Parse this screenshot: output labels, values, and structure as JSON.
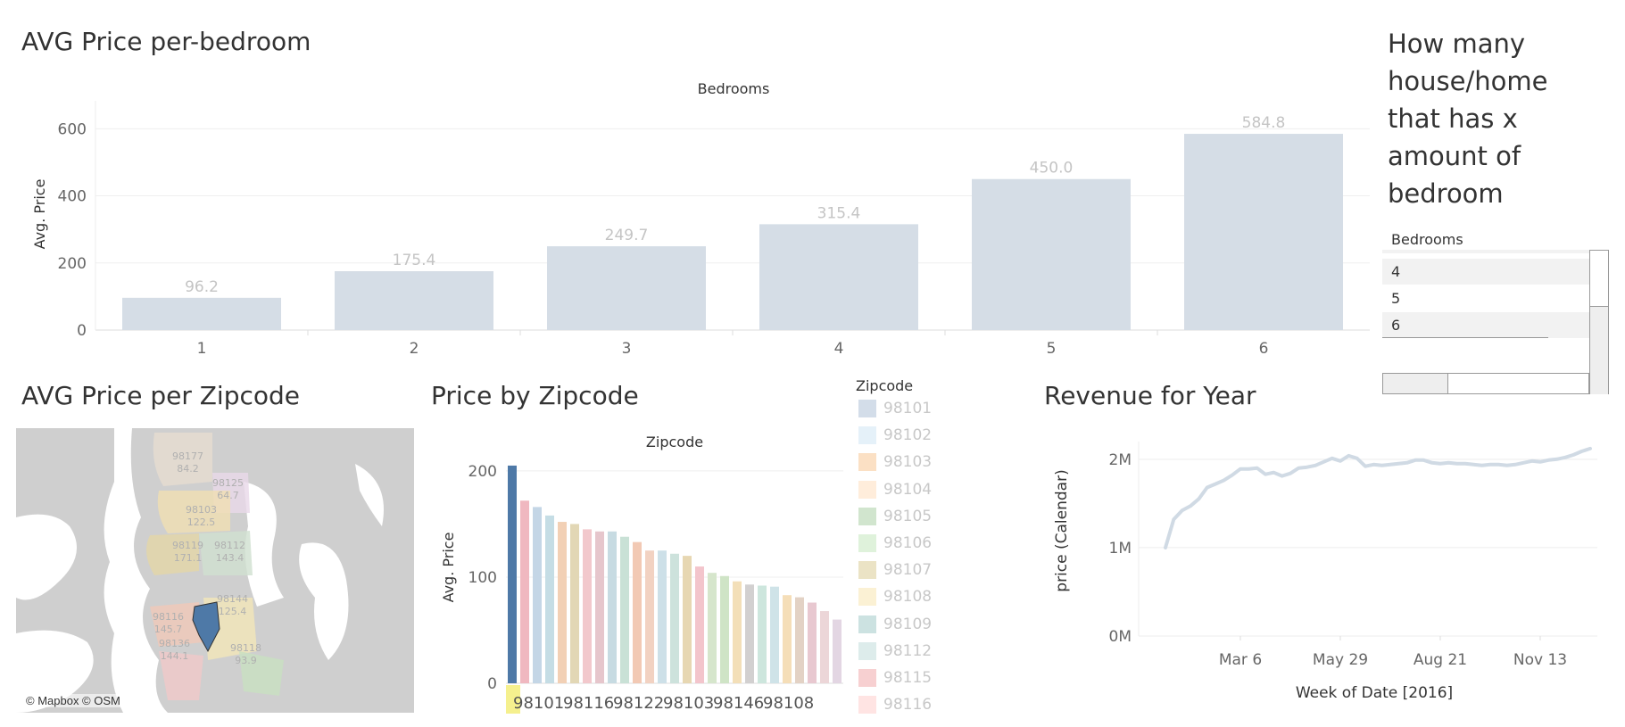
{
  "titles": {
    "bedroom_chart": "AVG Price per-bedroom",
    "count_panel": "How many house/home that has x amount of bedroom",
    "map": "AVG Price per Zipcode",
    "zipcode_chart": "Price by Zipcode",
    "revenue": "Revenue for Year"
  },
  "bedroom_list": {
    "header": "Bedrooms",
    "rows": [
      "4",
      "5",
      "6"
    ]
  },
  "zipcode_legend": {
    "title": "Zipcode",
    "items": [
      {
        "label": "98101",
        "color": "#4e79a7"
      },
      {
        "label": "98102",
        "color": "#a0cbe8"
      },
      {
        "label": "98103",
        "color": "#f28e2b"
      },
      {
        "label": "98104",
        "color": "#ffbe7d"
      },
      {
        "label": "98105",
        "color": "#59a14f"
      },
      {
        "label": "98106",
        "color": "#8cd17d"
      },
      {
        "label": "98107",
        "color": "#b6992d"
      },
      {
        "label": "98108",
        "color": "#f1ce63"
      },
      {
        "label": "98109",
        "color": "#499894"
      },
      {
        "label": "98112",
        "color": "#86bcb6"
      },
      {
        "label": "98115",
        "color": "#e15759"
      },
      {
        "label": "98116",
        "color": "#ff9d9a"
      }
    ]
  },
  "map": {
    "credit": "© Mapbox © OSM",
    "labels": [
      {
        "zip": "98177",
        "value": "84.2"
      },
      {
        "zip": "98125",
        "value": "64.7"
      },
      {
        "zip": "98103",
        "value": "122.5"
      },
      {
        "zip": "98119",
        "value": "171.1"
      },
      {
        "zip": "98112",
        "value": "143.4"
      },
      {
        "zip": "98144",
        "value": "125.4"
      },
      {
        "zip": "98116",
        "value": "145.7"
      },
      {
        "zip": "98118",
        "value": "93.9"
      },
      {
        "zip": "98136",
        "value": "144.1"
      }
    ]
  },
  "chart_data": [
    {
      "type": "bar",
      "title": "AVG Price per-bedroom",
      "xlabel": "Bedrooms",
      "ylabel": "Avg. Price",
      "categories": [
        "1",
        "2",
        "3",
        "4",
        "5",
        "6"
      ],
      "values": [
        96.2,
        175.4,
        249.7,
        315.4,
        450.0,
        584.8
      ],
      "data_labels": [
        "96.2",
        "175.4",
        "249.7",
        "315.4",
        "450.0",
        "584.8"
      ],
      "yticks": [
        0,
        200,
        400,
        600
      ],
      "ylim": [
        0,
        670
      ],
      "grid": true,
      "bar_color": "#d5dde6"
    },
    {
      "type": "bar",
      "title": "Price by Zipcode",
      "xlabel": "Zipcode",
      "ylabel": "Avg. Price",
      "xtick_labels": [
        "98101",
        "98116",
        "98122",
        "98103",
        "98146",
        "98108"
      ],
      "values": [
        205,
        172,
        166,
        158,
        152,
        150,
        145,
        143,
        143,
        138,
        133,
        125,
        125,
        122,
        120,
        110,
        104,
        101,
        96,
        93,
        92,
        91,
        83,
        81,
        76,
        68,
        60
      ],
      "yticks": [
        0,
        100,
        200
      ],
      "ylim": [
        0,
        210
      ],
      "grid": true,
      "highlight_color": "#4e79a7",
      "colors": [
        "#4e79a7",
        "#f0b8c0",
        "#c4d6e6",
        "#c5dde5",
        "#f2d0b5",
        "#e2d7b5",
        "#f2c8cc",
        "#e6c6cc",
        "#c7dbe2",
        "#c9e1d6",
        "#f2c9b4",
        "#f2d2c2",
        "#cde0e8",
        "#cde2dc",
        "#e7d7b2",
        "#f3c5cc",
        "#d6e6cc",
        "#cfe4c6",
        "#f3dfb8",
        "#d2d0d0",
        "#cde6dd",
        "#cfe3e8",
        "#f5deb8",
        "#e3d2c5",
        "#e8c8d0",
        "#ecd6d8",
        "#e3d6e3"
      ]
    },
    {
      "type": "line",
      "title": "Revenue for Year",
      "xlabel": "Week of Date [2016]",
      "ylabel": "price (Calendar)",
      "yticks": [
        "0M",
        "1M",
        "2M"
      ],
      "xticks": [
        "Mar 6",
        "May 29",
        "Aug 21",
        "Nov 13"
      ],
      "x": [
        "Jan 3",
        "Jan 10",
        "Jan 17",
        "Jan 24",
        "Jan 31",
        "Feb 7",
        "Feb 14",
        "Feb 21",
        "Feb 28",
        "Mar 6",
        "Mar 13",
        "Mar 20",
        "Mar 27",
        "Apr 3",
        "Apr 10",
        "Apr 17",
        "Apr 24",
        "May 1",
        "May 8",
        "May 15",
        "May 22",
        "May 29",
        "Jun 5",
        "Jun 12",
        "Jun 19",
        "Jun 26",
        "Jul 3",
        "Jul 10",
        "Jul 17",
        "Jul 24",
        "Jul 31",
        "Aug 7",
        "Aug 14",
        "Aug 21",
        "Aug 28",
        "Sep 4",
        "Sep 11",
        "Sep 18",
        "Sep 25",
        "Oct 2",
        "Oct 9",
        "Oct 16",
        "Oct 23",
        "Oct 30",
        "Nov 6",
        "Nov 13",
        "Nov 20",
        "Nov 27",
        "Dec 4",
        "Dec 11",
        "Dec 18",
        "Dec 25"
      ],
      "values": [
        1.0,
        1.32,
        1.42,
        1.47,
        1.55,
        1.68,
        1.72,
        1.76,
        1.82,
        1.89,
        1.89,
        1.9,
        1.83,
        1.85,
        1.81,
        1.84,
        1.9,
        1.91,
        1.93,
        1.97,
        2.01,
        1.98,
        2.04,
        2.01,
        1.92,
        1.94,
        1.93,
        1.94,
        1.95,
        1.96,
        1.99,
        1.99,
        1.96,
        1.95,
        1.96,
        1.95,
        1.95,
        1.94,
        1.93,
        1.94,
        1.94,
        1.93,
        1.94,
        1.96,
        1.98,
        1.97,
        1.99,
        2.0,
        2.02,
        2.05,
        2.09,
        2.12
      ],
      "ylim": [
        0,
        2.2
      ],
      "grid": true,
      "line_color": "#d0dae4"
    }
  ]
}
